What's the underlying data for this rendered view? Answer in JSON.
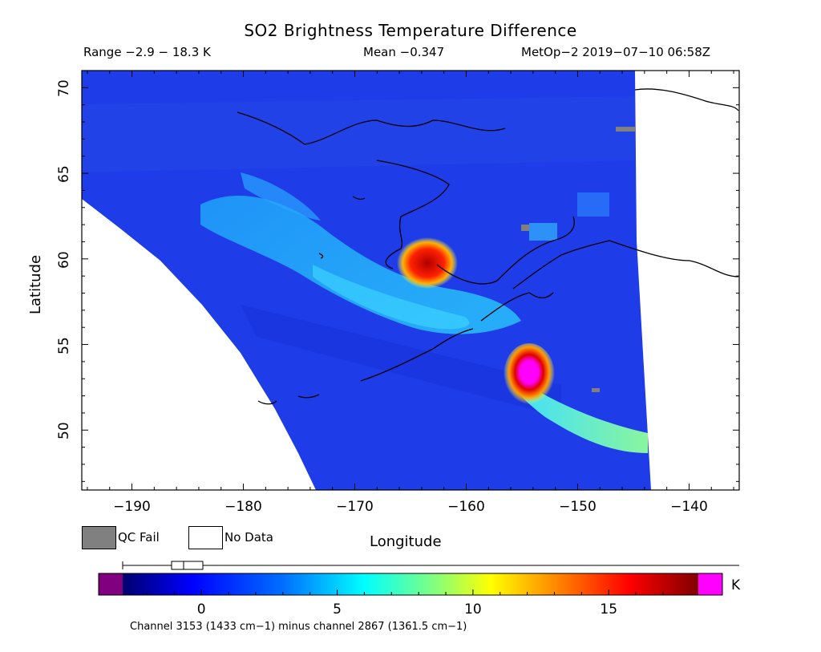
{
  "title": "SO2 Brightness Temperature Difference",
  "header": {
    "range_text": "Range −2.9 − 18.3 K",
    "mean_text": "Mean −0.347",
    "source_text": "MetOp−2 2019−07−10 06:58Z"
  },
  "axes": {
    "xlabel": "Longitude",
    "ylabel": "Latitude",
    "x_ticks": [
      "−190",
      "−180",
      "−170",
      "−160",
      "−150",
      "−140"
    ],
    "y_ticks": [
      "70",
      "65",
      "60",
      "55",
      "50"
    ],
    "xlim": [
      -194.5,
      -135.5
    ],
    "ylim": [
      46.5,
      71.0
    ]
  },
  "legend": {
    "qc_fail_label": "QC Fail",
    "no_data_label": "No Data",
    "qc_fail_color": "#808080",
    "no_data_color": "#ffffff"
  },
  "colorbar": {
    "unit": "K",
    "ticks": [
      "0",
      "5",
      "10",
      "15"
    ],
    "tick_values": [
      0,
      5,
      10,
      15
    ],
    "range": [
      -2.9,
      18.3
    ],
    "colormap": [
      "#800080",
      "#00007a",
      "#0000ff",
      "#0080ff",
      "#00ffff",
      "#80ff80",
      "#ffff00",
      "#ff8000",
      "#ff0000",
      "#800000",
      "#ff00ff"
    ]
  },
  "caption": "Channel 3153 (1433 cm−1) minus channel 2867 (1361.5 cm−1)",
  "colors": {
    "background_field": "#1e3ce8",
    "plume": "#2ec4ff",
    "hotspot_core": "#ff00ff",
    "hotspot_ring": "#ff1a00",
    "no_data": "#ffffff"
  }
}
